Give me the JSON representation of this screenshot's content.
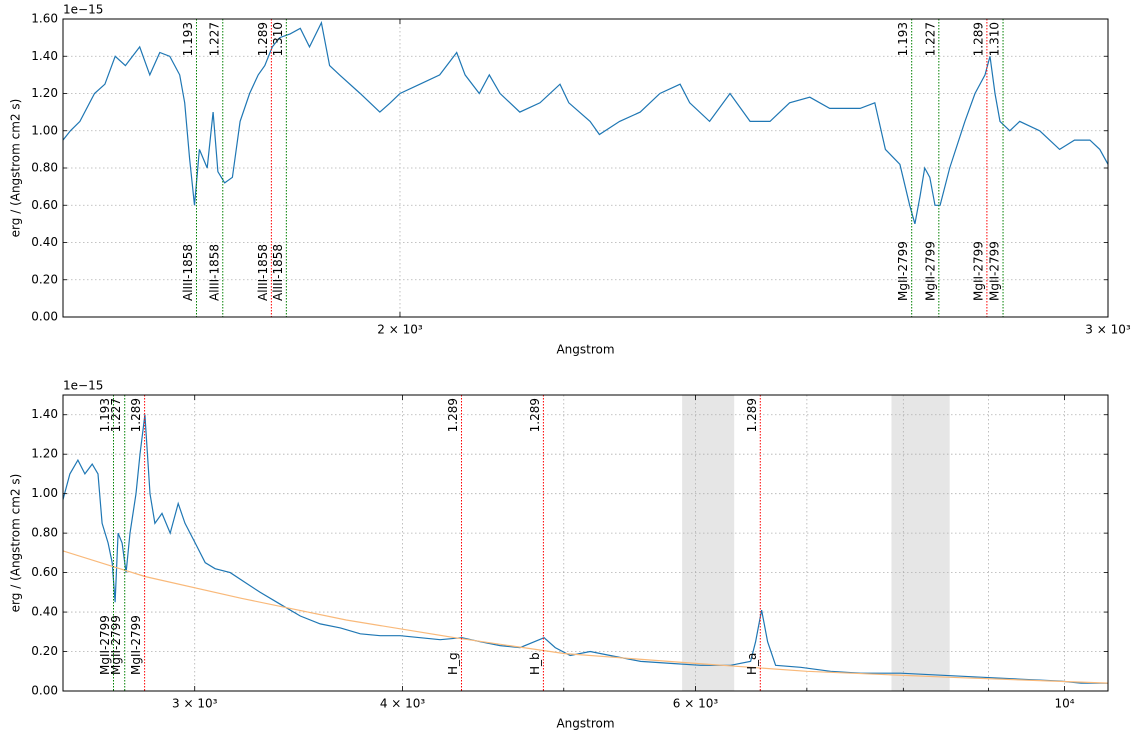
{
  "chart_data": [
    {
      "type": "line",
      "xscale": "log",
      "grid": true,
      "offset_text": "1e−15",
      "ylabel": "erg / (Angstrom cm2 s)",
      "xlabel": "Angstrom",
      "xlim": [
        1649,
        3000
      ],
      "xticks": [
        {
          "value": 2000,
          "label": "2 × 10³"
        },
        {
          "value": 3000,
          "label": "3 × 10³"
        }
      ],
      "ylim": [
        0,
        1.6
      ],
      "yticks": [
        {
          "value": 0,
          "label": "0.00"
        },
        {
          "value": 0.2,
          "label": "0.20"
        },
        {
          "value": 0.4,
          "label": "0.40"
        },
        {
          "value": 0.6,
          "label": "0.60"
        },
        {
          "value": 0.8,
          "label": "0.80"
        },
        {
          "value": 1.0,
          "label": "1.00"
        },
        {
          "value": 1.2,
          "label": "1.20"
        },
        {
          "value": 1.4,
          "label": "1.40"
        },
        {
          "value": 1.6,
          "label": "1.60"
        }
      ],
      "series": [
        {
          "color": "#1f77b4",
          "x": [
            1649,
            1656,
            1665,
            1679,
            1689,
            1699,
            1709,
            1723,
            1733,
            1743,
            1753,
            1763,
            1768,
            1773,
            1778,
            1783,
            1791,
            1797,
            1802,
            1809,
            1817,
            1825,
            1835,
            1844,
            1851,
            1859,
            1867,
            1878,
            1889,
            1899,
            1912,
            1921,
            1932,
            1955,
            1977,
            1989,
            2000,
            2023,
            2046,
            2066,
            2076,
            2093,
            2105,
            2118,
            2142,
            2167,
            2192,
            2203,
            2230,
            2242,
            2268,
            2295,
            2321,
            2348,
            2361,
            2388,
            2416,
            2444,
            2472,
            2500,
            2529,
            2558,
            2603,
            2625,
            2641,
            2663,
            2678,
            2686,
            2694,
            2701,
            2709,
            2717,
            2725,
            2740,
            2764,
            2780,
            2796,
            2804,
            2812,
            2820,
            2836,
            2852,
            2885,
            2918,
            2943,
            2969,
            2986,
            3000
          ],
          "values": [
            0.95,
            1.0,
            1.05,
            1.2,
            1.25,
            1.4,
            1.35,
            1.45,
            1.3,
            1.42,
            1.4,
            1.3,
            1.15,
            0.85,
            0.6,
            0.9,
            0.8,
            1.1,
            0.78,
            0.72,
            0.75,
            1.05,
            1.2,
            1.3,
            1.35,
            1.45,
            1.5,
            1.52,
            1.55,
            1.45,
            1.58,
            1.35,
            1.3,
            1.2,
            1.1,
            1.15,
            1.2,
            1.25,
            1.3,
            1.42,
            1.3,
            1.2,
            1.3,
            1.2,
            1.1,
            1.15,
            1.25,
            1.15,
            1.05,
            0.98,
            1.05,
            1.1,
            1.2,
            1.25,
            1.15,
            1.05,
            1.2,
            1.05,
            1.05,
            1.15,
            1.18,
            1.12,
            1.12,
            1.15,
            0.9,
            0.82,
            0.6,
            0.5,
            0.65,
            0.8,
            0.75,
            0.6,
            0.6,
            0.8,
            1.05,
            1.2,
            1.3,
            1.4,
            1.2,
            1.05,
            1.0,
            1.05,
            1.0,
            0.9,
            0.95,
            0.95,
            0.9,
            0.82
          ]
        }
      ],
      "lines": [
        {
          "x": 1780,
          "color": "green",
          "top": "1.193",
          "bottom": "AlIII-1858"
        },
        {
          "x": 1807,
          "color": "green",
          "top": "1.227",
          "bottom": "AlIII-1858"
        },
        {
          "x": 1858,
          "color": "red",
          "top": "1.289",
          "bottom": "AlIII-1858"
        },
        {
          "x": 1874,
          "color": "green",
          "top": "1.310",
          "bottom": "AlIII-1858"
        },
        {
          "x": 2681,
          "color": "green",
          "top": "1.193",
          "bottom": "MgII-2799"
        },
        {
          "x": 2723,
          "color": "green",
          "top": "1.227",
          "bottom": "MgII-2799"
        },
        {
          "x": 2799,
          "color": "red",
          "top": "1.289",
          "bottom": "MgII-2799"
        },
        {
          "x": 2825,
          "color": "green",
          "top": "1.310",
          "bottom": "MgII-2799"
        }
      ]
    },
    {
      "type": "line",
      "xscale": "log",
      "grid": true,
      "offset_text": "1e−15",
      "ylabel": "erg / (Angstrom cm2 s)",
      "xlabel": "Angstrom",
      "xlim": [
        2500,
        10620
      ],
      "xticks": [
        {
          "value": 3000,
          "label": "3 × 10³"
        },
        {
          "value": 4000,
          "label": "4 × 10³"
        },
        {
          "value": 6000,
          "label": "6 × 10³"
        },
        {
          "value": 10000,
          "label": "10⁴"
        }
      ],
      "minor_xticks": [
        5000,
        7000,
        8000,
        9000
      ],
      "ylim": [
        0,
        1.5
      ],
      "yticks": [
        {
          "value": 0,
          "label": "0.00"
        },
        {
          "value": 0.2,
          "label": "0.20"
        },
        {
          "value": 0.4,
          "label": "0.40"
        },
        {
          "value": 0.6,
          "label": "0.60"
        },
        {
          "value": 0.8,
          "label": "0.80"
        },
        {
          "value": 1.0,
          "label": "1.00"
        },
        {
          "value": 1.2,
          "label": "1.20"
        },
        {
          "value": 1.4,
          "label": "1.40"
        }
      ],
      "shaded": [
        [
          5890,
          6330
        ],
        [
          7870,
          8530
        ]
      ],
      "shade_color": "#e6e6e6",
      "series": [
        {
          "color": "#1f77b4",
          "x": [
            2500,
            2524,
            2552,
            2577,
            2603,
            2624,
            2639,
            2661,
            2676,
            2687,
            2698,
            2713,
            2728,
            2743,
            2766,
            2781,
            2800,
            2820,
            2839,
            2867,
            2900,
            2932,
            2960,
            3002,
            3044,
            3086,
            3151,
            3217,
            3284,
            3377,
            3472,
            3569,
            3670,
            3773,
            3878,
            3987,
            4099,
            4214,
            4343,
            4453,
            4578,
            4707,
            4866,
            4941,
            5045,
            5186,
            5332,
            5561,
            5797,
            6043,
            6299,
            6476,
            6521,
            6575,
            6630,
            6704,
            6940,
            7234,
            7542,
            7970,
            8424,
            8906,
            9412,
            9949,
            10231,
            10620
          ],
          "values": [
            0.97,
            1.1,
            1.17,
            1.1,
            1.15,
            1.1,
            0.85,
            0.75,
            0.65,
            0.45,
            0.8,
            0.75,
            0.6,
            0.8,
            1.0,
            1.2,
            1.4,
            1.0,
            0.85,
            0.9,
            0.8,
            0.95,
            0.85,
            0.75,
            0.65,
            0.62,
            0.6,
            0.55,
            0.5,
            0.44,
            0.38,
            0.34,
            0.32,
            0.29,
            0.28,
            0.28,
            0.27,
            0.26,
            0.27,
            0.25,
            0.23,
            0.22,
            0.27,
            0.22,
            0.18,
            0.2,
            0.18,
            0.15,
            0.14,
            0.13,
            0.13,
            0.15,
            0.25,
            0.41,
            0.25,
            0.13,
            0.12,
            0.1,
            0.09,
            0.09,
            0.08,
            0.07,
            0.06,
            0.05,
            0.04,
            0.04
          ]
        },
        {
          "color": "#f9b97a",
          "x": [
            2500,
            2800,
            3200,
            3700,
            4300,
            5000,
            6000,
            7000,
            8500,
            10620
          ],
          "values": [
            0.71,
            0.58,
            0.47,
            0.36,
            0.27,
            0.19,
            0.14,
            0.1,
            0.07,
            0.04
          ]
        }
      ],
      "lines": [
        {
          "x": 2681,
          "color": "green",
          "top": "1.193",
          "bottom": "MgII-2799"
        },
        {
          "x": 2723,
          "color": "green",
          "top": "1.227",
          "bottom": "MgII-2799"
        },
        {
          "x": 2799,
          "color": "red",
          "top": "1.289",
          "bottom": "MgII-2799"
        },
        {
          "x": 4340,
          "color": "red",
          "top": "1.289",
          "bottom": "H_g"
        },
        {
          "x": 4861,
          "color": "red",
          "top": "1.289",
          "bottom": "H_b"
        },
        {
          "x": 6563,
          "color": "red",
          "top": "1.289",
          "bottom": "H_a"
        }
      ]
    }
  ]
}
